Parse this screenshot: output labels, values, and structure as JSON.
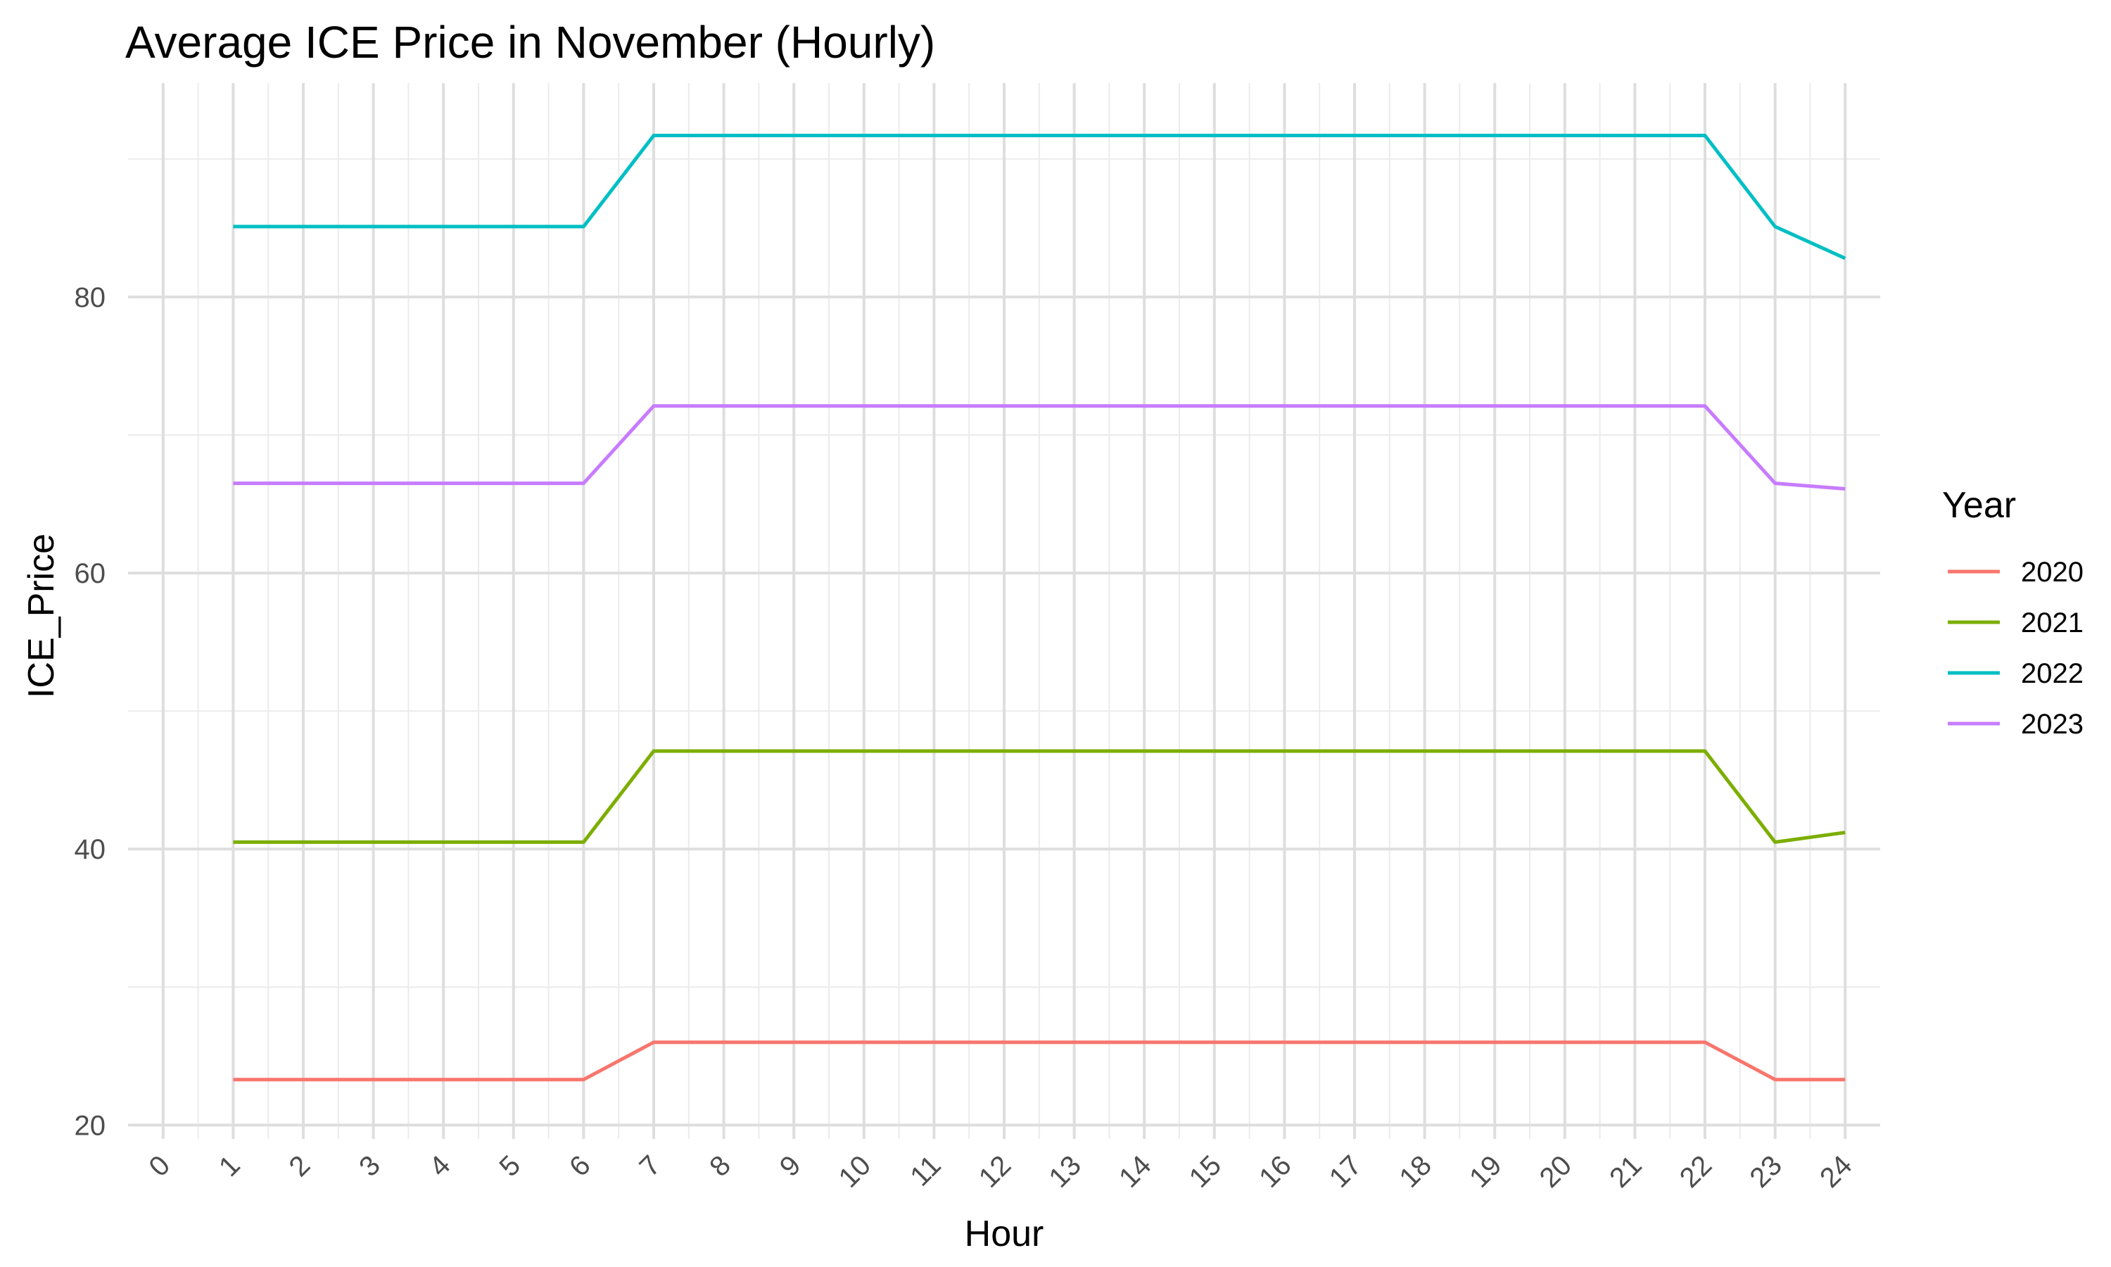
{
  "chart_data": {
    "type": "line",
    "title": "Average ICE Price in November (Hourly)",
    "xlabel": "Hour",
    "ylabel": "ICE_Price",
    "x_ticks": [
      "0",
      "1",
      "2",
      "3",
      "4",
      "5",
      "6",
      "7",
      "8",
      "9",
      "10",
      "11",
      "12",
      "13",
      "14",
      "15",
      "16",
      "17",
      "18",
      "19",
      "20",
      "21",
      "22",
      "23",
      "24"
    ],
    "y_ticks": [
      "20",
      "40",
      "60",
      "80"
    ],
    "xlim": [
      -0.5,
      24.5
    ],
    "ylim": [
      19,
      95.5
    ],
    "grid": true,
    "legend": {
      "title": "Year",
      "position": "right"
    },
    "x": [
      1,
      2,
      3,
      4,
      5,
      6,
      7,
      8,
      9,
      10,
      11,
      12,
      13,
      14,
      15,
      16,
      17,
      18,
      19,
      20,
      21,
      22,
      23,
      24
    ],
    "series": [
      {
        "name": "2020",
        "color": "#F8766D",
        "values": [
          23.3,
          23.3,
          23.3,
          23.3,
          23.3,
          23.3,
          26.0,
          26.0,
          26.0,
          26.0,
          26.0,
          26.0,
          26.0,
          26.0,
          26.0,
          26.0,
          26.0,
          26.0,
          26.0,
          26.0,
          26.0,
          26.0,
          23.3,
          23.3
        ]
      },
      {
        "name": "2021",
        "color": "#7CAE00",
        "values": [
          40.5,
          40.5,
          40.5,
          40.5,
          40.5,
          40.5,
          47.1,
          47.1,
          47.1,
          47.1,
          47.1,
          47.1,
          47.1,
          47.1,
          47.1,
          47.1,
          47.1,
          47.1,
          47.1,
          47.1,
          47.1,
          47.1,
          40.5,
          41.2
        ]
      },
      {
        "name": "2022",
        "color": "#00BFC4",
        "values": [
          85.1,
          85.1,
          85.1,
          85.1,
          85.1,
          85.1,
          91.7,
          91.7,
          91.7,
          91.7,
          91.7,
          91.7,
          91.7,
          91.7,
          91.7,
          91.7,
          91.7,
          91.7,
          91.7,
          91.7,
          91.7,
          91.7,
          85.1,
          82.8
        ]
      },
      {
        "name": "2023",
        "color": "#C77CFF",
        "values": [
          66.5,
          66.5,
          66.5,
          66.5,
          66.5,
          66.5,
          72.1,
          72.1,
          72.1,
          72.1,
          72.1,
          72.1,
          72.1,
          72.1,
          72.1,
          72.1,
          72.1,
          72.1,
          72.1,
          72.1,
          72.1,
          72.1,
          66.5,
          66.1
        ]
      }
    ]
  }
}
